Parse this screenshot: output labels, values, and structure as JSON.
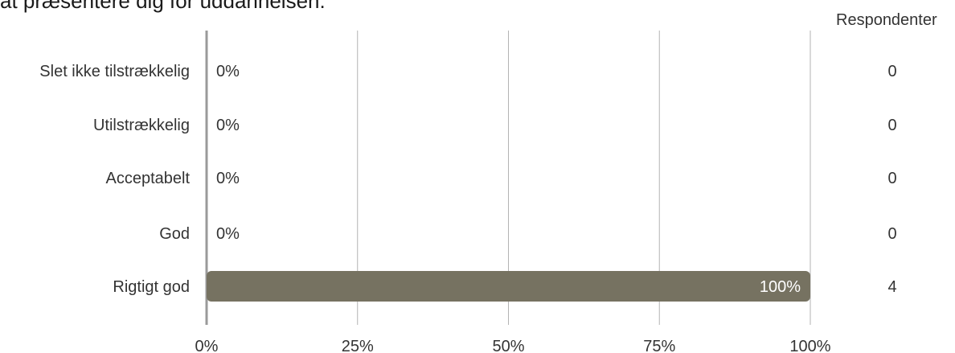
{
  "title": "at præsentere dig for uddannelsen.",
  "count_header": "Respondenter",
  "colors": {
    "bar": "#767261",
    "grid": "#b3b3b3",
    "axis": "#9a9a9a"
  },
  "chart_data": {
    "type": "bar",
    "orientation": "horizontal",
    "categories": [
      "Slet ikke tilstrækkelig",
      "Utilstrækkelig",
      "Acceptabelt",
      "God",
      "Rigtigt god"
    ],
    "values": [
      0,
      0,
      0,
      0,
      100
    ],
    "value_labels": [
      "0%",
      "0%",
      "0%",
      "0%",
      "100%"
    ],
    "counts": [
      "0",
      "0",
      "0",
      "0",
      "4"
    ],
    "xlim": [
      0,
      100
    ],
    "xticks": [
      0,
      25,
      50,
      75,
      100
    ],
    "xtick_labels": [
      "0%",
      "25%",
      "50%",
      "75%",
      "100%"
    ],
    "grid": true
  }
}
